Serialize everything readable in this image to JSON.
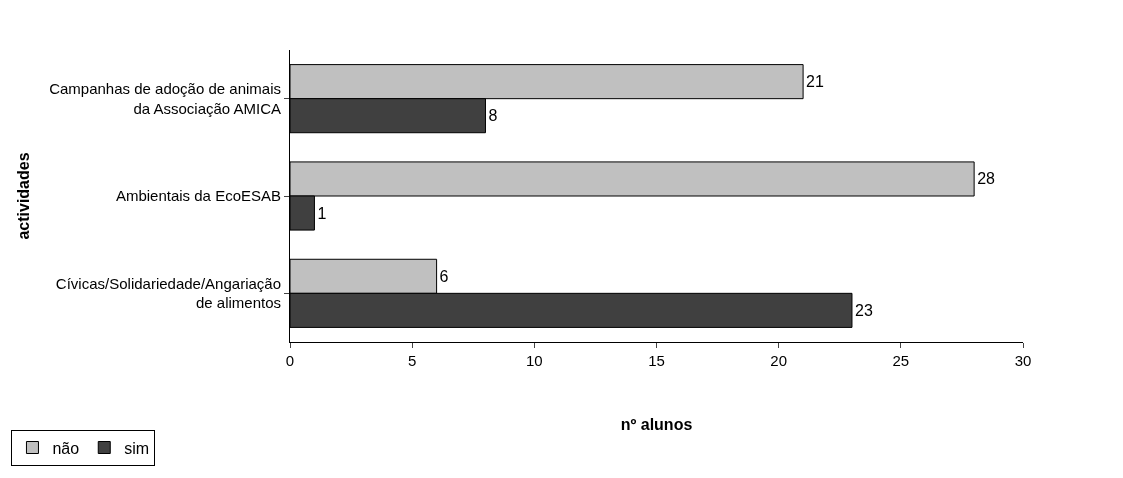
{
  "chart_data": {
    "type": "bar",
    "orientation": "horizontal",
    "xlabel": "nº alunos",
    "ylabel": "actividades",
    "categories": [
      "Campanhas de adoção de animais da Associação AMICA",
      "Ambientais da EcoESAB",
      "Cívicas/Solidariedade/Angariação de alimentos"
    ],
    "series": [
      {
        "name": "não",
        "color": "#c0c0c0",
        "values": [
          21,
          28,
          6
        ]
      },
      {
        "name": "sim",
        "color": "#404040",
        "values": [
          8,
          1,
          23
        ]
      }
    ],
    "xlim": [
      0,
      30
    ],
    "xticks": [
      0,
      5,
      10,
      15,
      20,
      25,
      30
    ],
    "data_labels": true,
    "grid": false,
    "legend": "bottom left"
  }
}
